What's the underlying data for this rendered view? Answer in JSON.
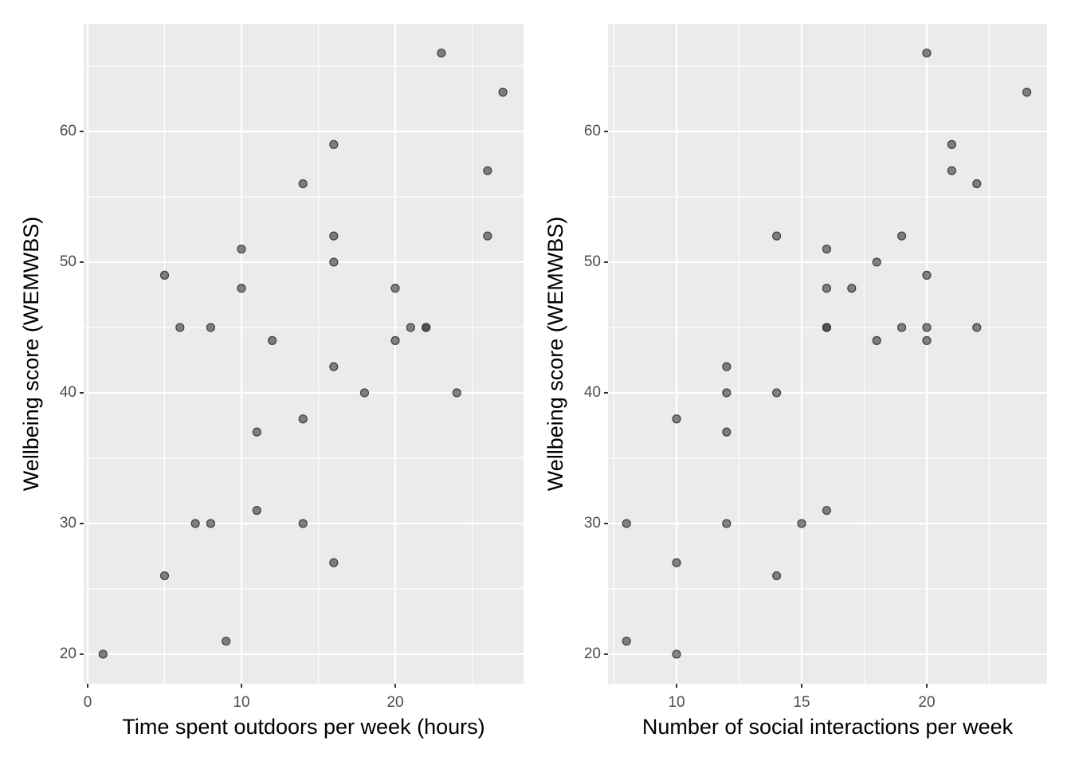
{
  "chart_data": [
    {
      "type": "scatter",
      "xlabel": "Time spent outdoors per week (hours)",
      "ylabel": "Wellbeing score (WEMWBS)",
      "color": "#333333",
      "grid": true,
      "x": [
        1,
        5,
        5,
        6,
        7,
        8,
        8,
        9,
        10,
        10,
        11,
        11,
        12,
        14,
        14,
        14,
        16,
        16,
        16,
        16,
        16,
        18,
        20,
        20,
        21,
        22,
        22,
        23,
        24,
        26,
        26,
        27
      ],
      "values": [
        20,
        26,
        49,
        45,
        30,
        30,
        45,
        21,
        51,
        48,
        37,
        31,
        44,
        56,
        38,
        30,
        59,
        52,
        50,
        42,
        27,
        40,
        48,
        44,
        45,
        45,
        45,
        66,
        40,
        57,
        52,
        63
      ],
      "xlim": [
        -0.26,
        28.34
      ],
      "ylim": [
        17.74,
        68.23
      ],
      "xticks": [
        0,
        10,
        20
      ],
      "yticks": [
        20,
        30,
        40,
        50,
        60
      ],
      "xminor": [
        5,
        15,
        25
      ],
      "yminor": [
        25,
        35,
        45,
        55,
        65
      ]
    },
    {
      "type": "scatter",
      "xlabel": "Number of social interactions per week",
      "ylabel": "Wellbeing score (WEMWBS)",
      "color": "#333333",
      "grid": true,
      "x": [
        8,
        8,
        10,
        10,
        10,
        12,
        12,
        12,
        12,
        14,
        14,
        14,
        15,
        16,
        16,
        16,
        16,
        16,
        17,
        18,
        18,
        19,
        19,
        20,
        20,
        20,
        20,
        21,
        21,
        22,
        22,
        24
      ],
      "values": [
        30,
        21,
        38,
        27,
        20,
        42,
        40,
        37,
        30,
        52,
        40,
        26,
        30,
        51,
        48,
        45,
        45,
        31,
        48,
        50,
        44,
        52,
        45,
        66,
        49,
        45,
        44,
        59,
        57,
        56,
        45,
        63
      ],
      "xlim": [
        7.26,
        24.81
      ],
      "ylim": [
        17.74,
        68.23
      ],
      "xticks": [
        10,
        15,
        20
      ],
      "yticks": [
        20,
        30,
        40,
        50,
        60
      ],
      "xminor": [
        7.5,
        12.5,
        17.5,
        22.5
      ],
      "yminor": [
        25,
        35,
        45,
        55,
        65
      ]
    }
  ]
}
